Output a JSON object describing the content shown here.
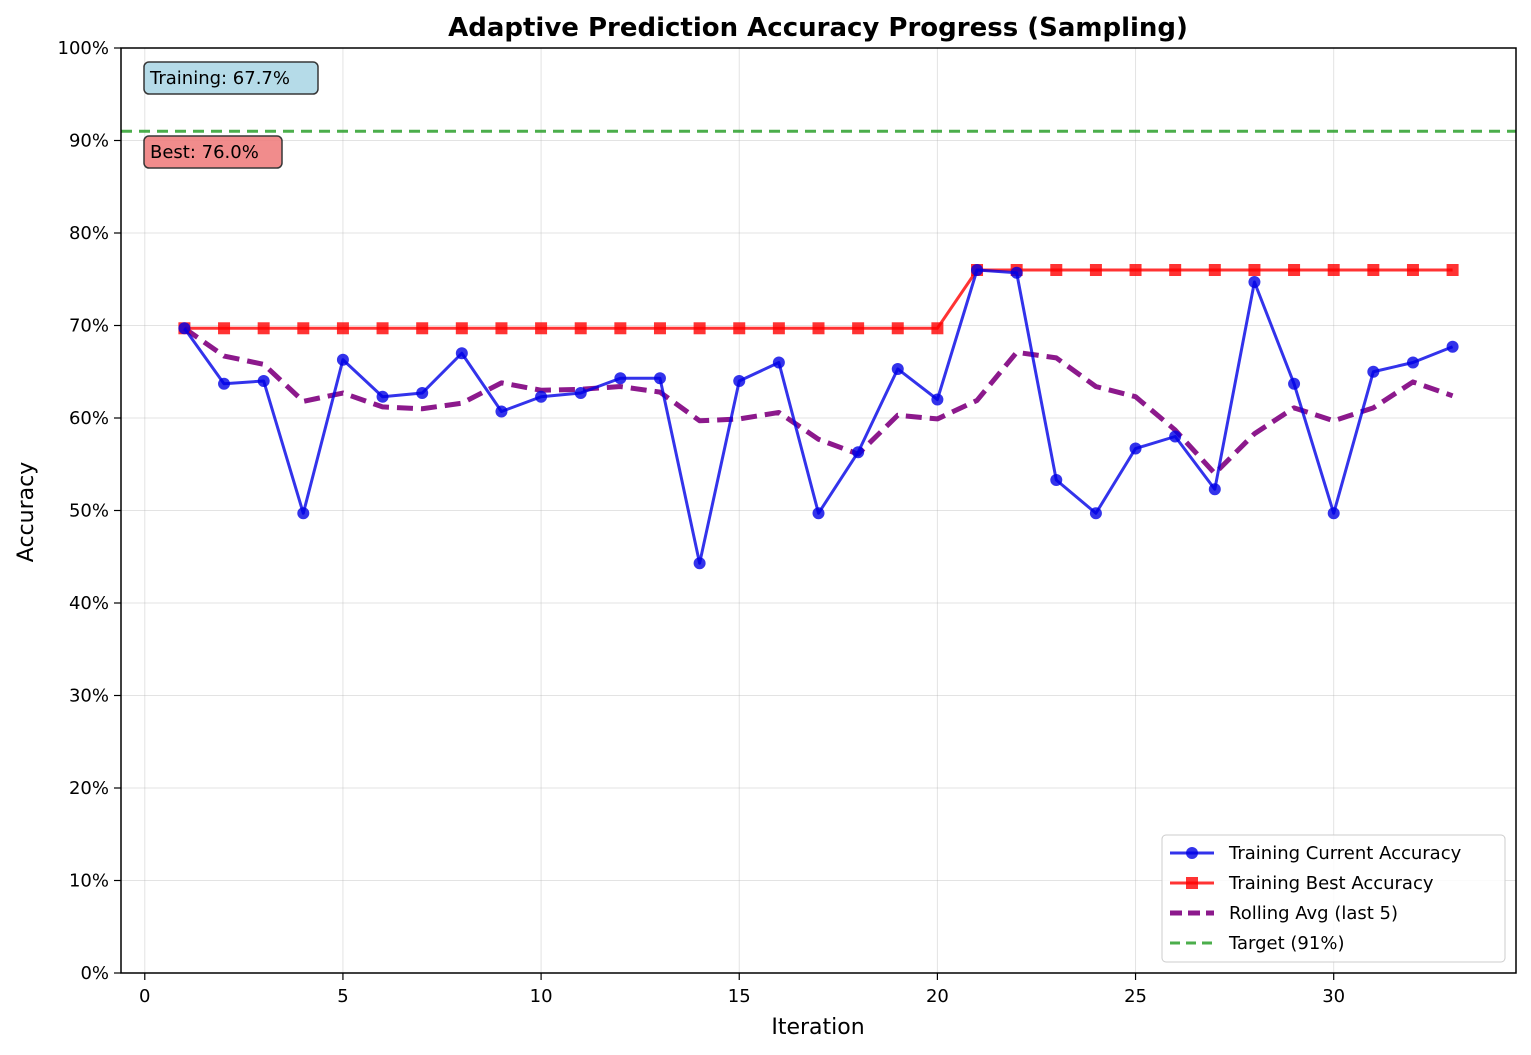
{
  "chart_data": {
    "type": "line",
    "title": "Adaptive Prediction Accuracy Progress (Sampling)",
    "xlabel": "Iteration",
    "ylabel": "Accuracy",
    "xlim": [
      -0.6,
      34.6
    ],
    "ylim": [
      0,
      1.0
    ],
    "x_ticks": [
      0,
      5,
      10,
      15,
      20,
      25,
      30
    ],
    "y_ticks": [
      0,
      0.1,
      0.2,
      0.3,
      0.4,
      0.5,
      0.6,
      0.7,
      0.8,
      0.9,
      1.0
    ],
    "y_tick_labels": [
      "0%",
      "10%",
      "20%",
      "30%",
      "40%",
      "50%",
      "60%",
      "70%",
      "80%",
      "90%",
      "100%"
    ],
    "grid": true,
    "legend_position": "bottom-right",
    "x": [
      1,
      2,
      3,
      4,
      5,
      6,
      7,
      8,
      9,
      10,
      11,
      12,
      13,
      14,
      15,
      16,
      17,
      18,
      19,
      20,
      21,
      22,
      23,
      24,
      25,
      26,
      27,
      28,
      29,
      30,
      31,
      32,
      33
    ],
    "series": [
      {
        "name": "Training Current Accuracy",
        "color": "#0000e6",
        "style": "line-circle",
        "values": [
          0.697,
          0.637,
          0.64,
          0.497,
          0.663,
          0.623,
          0.627,
          0.67,
          0.607,
          0.623,
          0.627,
          0.643,
          0.643,
          0.443,
          0.64,
          0.66,
          0.497,
          0.563,
          0.653,
          0.62,
          0.76,
          0.757,
          0.533,
          0.497,
          0.567,
          0.58,
          0.523,
          0.747,
          0.637,
          0.497,
          0.65,
          0.66,
          0.677
        ]
      },
      {
        "name": "Training Best Accuracy",
        "color": "#ff0000",
        "style": "line-square",
        "values": [
          0.697,
          0.697,
          0.697,
          0.697,
          0.697,
          0.697,
          0.697,
          0.697,
          0.697,
          0.697,
          0.697,
          0.697,
          0.697,
          0.697,
          0.697,
          0.697,
          0.697,
          0.697,
          0.697,
          0.697,
          0.76,
          0.76,
          0.76,
          0.76,
          0.76,
          0.76,
          0.76,
          0.76,
          0.76,
          0.76,
          0.76,
          0.76,
          0.76
        ]
      },
      {
        "name": "Rolling Avg (last 5)",
        "color": "#800080",
        "style": "dashed-thick",
        "values": [
          0.697,
          0.667,
          0.658,
          0.618,
          0.627,
          0.612,
          0.61,
          0.616,
          0.638,
          0.63,
          0.631,
          0.634,
          0.628,
          0.597,
          0.599,
          0.606,
          0.577,
          0.561,
          0.603,
          0.599,
          0.619,
          0.671,
          0.665,
          0.634,
          0.623,
          0.587,
          0.54,
          0.583,
          0.611,
          0.597,
          0.611,
          0.639,
          0.624
        ]
      },
      {
        "name": "Target (91%)",
        "color": "#2ca02c",
        "style": "dashed-horizontal",
        "y": 0.91
      }
    ],
    "annotations": [
      {
        "text": "Training: 67.7%",
        "bg": "#add8e6"
      },
      {
        "text": "Best: 76.0%",
        "bg": "#f08080"
      }
    ]
  }
}
